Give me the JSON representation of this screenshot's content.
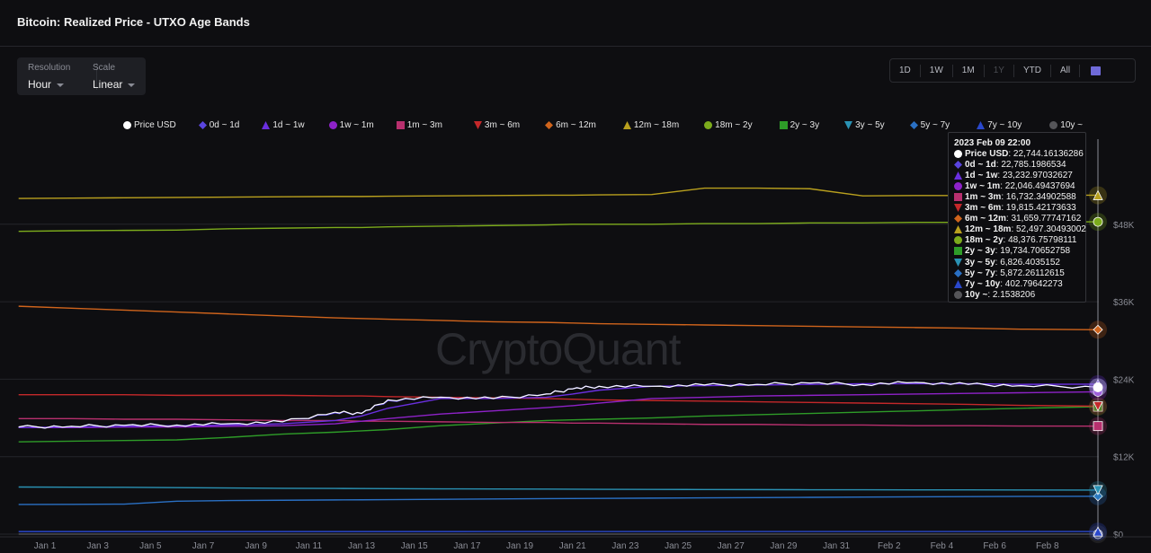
{
  "header": {
    "title": "Bitcoin: Realized Price - UTXO Age Bands"
  },
  "controls": {
    "resolution_label": "Resolution",
    "resolution_value": "Hour",
    "scale_label": "Scale",
    "scale_value": "Linear"
  },
  "range_buttons": [
    {
      "label": "1D",
      "disabled": false
    },
    {
      "label": "1W",
      "disabled": false
    },
    {
      "label": "1M",
      "disabled": false
    },
    {
      "label": "1Y",
      "disabled": true
    },
    {
      "label": "YTD",
      "disabled": false
    },
    {
      "label": "All",
      "disabled": false
    }
  ],
  "calendar_icon": "calendar-icon",
  "watermark": "CryptoQuant",
  "tooltip": {
    "date": "2023 Feb 09 22:00",
    "rows": [
      {
        "name": "Price USD",
        "value": "22,744.16136286"
      },
      {
        "name": "0d ~ 1d",
        "value": "22,785.1986534"
      },
      {
        "name": "1d ~ 1w",
        "value": "23,232.97032627"
      },
      {
        "name": "1w ~ 1m",
        "value": "22,046.49437694"
      },
      {
        "name": "1m ~ 3m",
        "value": "16,732.34902588"
      },
      {
        "name": "3m ~ 6m",
        "value": "19,815.42173633"
      },
      {
        "name": "6m ~ 12m",
        "value": "31,659.77747162"
      },
      {
        "name": "12m ~ 18m",
        "value": "52,497.30493002"
      },
      {
        "name": "18m ~ 2y",
        "value": "48,376.75798111"
      },
      {
        "name": "2y ~ 3y",
        "value": "19,734.70652758"
      },
      {
        "name": "3y ~ 5y",
        "value": "6,826.4035152"
      },
      {
        "name": "5y ~ 7y",
        "value": "5,872.26112615"
      },
      {
        "name": "7y ~ 10y",
        "value": "402.79642273"
      },
      {
        "name": "10y ~",
        "value": "2.1538206"
      }
    ]
  },
  "chart_data": {
    "type": "line",
    "title": "Bitcoin: Realized Price - UTXO Age Bands",
    "y_unit": "USD",
    "ylim": [
      0,
      60000
    ],
    "y_ticks": [
      "$0",
      "$12K",
      "$24K",
      "$36K",
      "$48K"
    ],
    "y_tick_values": [
      0,
      12000,
      24000,
      36000,
      48000
    ],
    "x_ticks": [
      "Jan 1",
      "Jan 3",
      "Jan 5",
      "Jan 7",
      "Jan 9",
      "Jan 11",
      "Jan 13",
      "Jan 15",
      "Jan 17",
      "Jan 19",
      "Jan 21",
      "Jan 23",
      "Jan 25",
      "Jan 27",
      "Jan 29",
      "Jan 31",
      "Feb 2",
      "Feb 4",
      "Feb 6",
      "Feb 8"
    ],
    "x_tick_dates": [
      "2023-01-01",
      "2023-01-03",
      "2023-01-05",
      "2023-01-07",
      "2023-01-09",
      "2023-01-11",
      "2023-01-13",
      "2023-01-15",
      "2023-01-17",
      "2023-01-19",
      "2023-01-21",
      "2023-01-23",
      "2023-01-25",
      "2023-01-27",
      "2023-01-29",
      "2023-01-31",
      "2023-02-02",
      "2023-02-04",
      "2023-02-06",
      "2023-02-08"
    ],
    "xlim": [
      "2022-12-31T00:00",
      "2023-02-09T22:00"
    ],
    "grid": "horizontal",
    "legend_placement": "top",
    "x": [
      "2022-12-31",
      "2023-01-02",
      "2023-01-04",
      "2023-01-06",
      "2023-01-08",
      "2023-01-10",
      "2023-01-12",
      "2023-01-13",
      "2023-01-14",
      "2023-01-16",
      "2023-01-18",
      "2023-01-20",
      "2023-01-21",
      "2023-01-22",
      "2023-01-24",
      "2023-01-26",
      "2023-01-28",
      "2023-01-30",
      "2023-02-01",
      "2023-02-03",
      "2023-02-05",
      "2023-02-07",
      "2023-02-09T22:00"
    ],
    "series": [
      {
        "name": "Price USD",
        "color": "#ffffff",
        "marker": "circle",
        "values": [
          16600,
          16700,
          16850,
          16900,
          17100,
          17400,
          18900,
          18700,
          20800,
          21200,
          21000,
          21700,
          22500,
          22900,
          22900,
          23100,
          23200,
          23400,
          23200,
          23500,
          23200,
          23000,
          22744
        ]
      },
      {
        "name": "0d ~ 1d",
        "color": "#5a45e0",
        "marker": "diamond",
        "values": [
          16600,
          16700,
          16850,
          16900,
          17100,
          17400,
          18800,
          18700,
          20700,
          21200,
          21000,
          21700,
          22500,
          22900,
          22900,
          23100,
          23200,
          23400,
          23200,
          23500,
          23200,
          23000,
          22785
        ]
      },
      {
        "name": "1d ~ 1w",
        "color": "#6a2fe0",
        "marker": "triangle",
        "values": [
          16500,
          16600,
          16700,
          16800,
          16900,
          17100,
          17600,
          18300,
          19500,
          21000,
          21000,
          21200,
          21700,
          22300,
          22900,
          23000,
          23100,
          23200,
          23300,
          23300,
          23300,
          23200,
          23233
        ]
      },
      {
        "name": "1w ~ 1m",
        "color": "#8e22c8",
        "marker": "circle",
        "values": [
          16500,
          16500,
          16600,
          16600,
          16700,
          16800,
          17100,
          17500,
          17900,
          18600,
          19100,
          19600,
          19900,
          20300,
          21000,
          21200,
          21400,
          21500,
          21600,
          21700,
          21800,
          21900,
          22046
        ]
      },
      {
        "name": "1m ~ 3m",
        "color": "#b8306e",
        "marker": "square",
        "values": [
          17900,
          17900,
          17800,
          17800,
          17700,
          17600,
          17600,
          17500,
          17500,
          17400,
          17300,
          17300,
          17200,
          17200,
          17100,
          17000,
          17000,
          16900,
          16900,
          16800,
          16800,
          16750,
          16732
        ]
      },
      {
        "name": "3m ~ 6m",
        "color": "#c4282a",
        "marker": "triangle-down",
        "values": [
          21600,
          21600,
          21600,
          21500,
          21500,
          21500,
          21400,
          21400,
          21300,
          21200,
          21100,
          21000,
          20900,
          20800,
          20700,
          20600,
          20500,
          20400,
          20300,
          20200,
          20100,
          19950,
          19815
        ]
      },
      {
        "name": "6m ~ 12m",
        "color": "#d0641c",
        "marker": "diamond",
        "values": [
          35300,
          35000,
          34700,
          34400,
          34100,
          33800,
          33500,
          33400,
          33300,
          33100,
          32900,
          32800,
          32700,
          32600,
          32500,
          32400,
          32300,
          32200,
          32100,
          32000,
          31900,
          31750,
          31660
        ]
      },
      {
        "name": "12m ~ 18m",
        "color": "#b9a01e",
        "marker": "triangle",
        "values": [
          52000,
          52050,
          52100,
          52150,
          52200,
          52250,
          52300,
          52300,
          52350,
          52400,
          52450,
          52500,
          52500,
          52550,
          52600,
          53600,
          53600,
          53500,
          52400,
          52450,
          52450,
          52500,
          52497
        ]
      },
      {
        "name": "18m ~ 2y",
        "color": "#7cab1c",
        "marker": "circle",
        "values": [
          46900,
          47000,
          47050,
          47100,
          47300,
          47400,
          47500,
          47500,
          47600,
          47700,
          47800,
          47900,
          48000,
          48000,
          48000,
          48100,
          48100,
          48200,
          48200,
          48300,
          48300,
          48350,
          48377
        ]
      },
      {
        "name": "2y ~ 3y",
        "color": "#2e9c28",
        "marker": "square",
        "values": [
          14300,
          14400,
          14500,
          14600,
          15000,
          15500,
          15800,
          16000,
          16200,
          16800,
          17200,
          17600,
          17700,
          17800,
          18000,
          18300,
          18500,
          18700,
          18900,
          19100,
          19300,
          19500,
          19735
        ]
      },
      {
        "name": "3y ~ 5y",
        "color": "#2a92b4",
        "marker": "triangle-down",
        "values": [
          7300,
          7280,
          7250,
          7200,
          7150,
          7100,
          7080,
          7060,
          7050,
          7020,
          7000,
          6980,
          6960,
          6950,
          6930,
          6910,
          6900,
          6880,
          6870,
          6860,
          6850,
          6840,
          6826
        ]
      },
      {
        "name": "5y ~ 7y",
        "color": "#2a70c4",
        "marker": "diamond",
        "values": [
          4600,
          4620,
          4650,
          5100,
          5200,
          5250,
          5300,
          5320,
          5340,
          5400,
          5450,
          5500,
          5520,
          5540,
          5580,
          5620,
          5660,
          5700,
          5740,
          5780,
          5820,
          5850,
          5872
        ]
      },
      {
        "name": "7y ~ 10y",
        "color": "#2a48cc",
        "marker": "triangle",
        "values": [
          400,
          400,
          400,
          400,
          401,
          401,
          401,
          401,
          401,
          401,
          402,
          402,
          402,
          402,
          402,
          402,
          402,
          402,
          403,
          403,
          403,
          403,
          403
        ]
      },
      {
        "name": "10y ~",
        "color": "#555559",
        "marker": "circle",
        "values": [
          2,
          2,
          2,
          2,
          2,
          2,
          2,
          2,
          2,
          2,
          2,
          2,
          2,
          2,
          2,
          2,
          2,
          2,
          2,
          2,
          2,
          2,
          2.15
        ]
      }
    ]
  }
}
